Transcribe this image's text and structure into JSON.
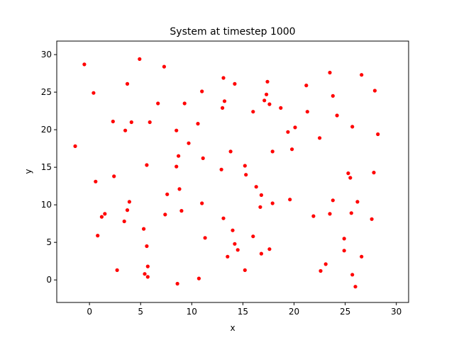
{
  "chart_data": {
    "type": "scatter",
    "title": "System at timestep 1000",
    "xlabel": "x",
    "ylabel": "y",
    "xlim": [
      -3.2,
      31.2
    ],
    "ylim": [
      -3.0,
      31.8
    ],
    "xticks": [
      0,
      5,
      10,
      15,
      20,
      25,
      30
    ],
    "yticks": [
      0,
      5,
      10,
      15,
      20,
      25,
      30
    ],
    "grid": false,
    "marker_color": "#ff0000",
    "points": [
      [
        -1.4,
        17.8
      ],
      [
        -0.5,
        28.7
      ],
      [
        0.4,
        24.9
      ],
      [
        0.6,
        13.1
      ],
      [
        0.8,
        5.9
      ],
      [
        1.2,
        8.4
      ],
      [
        1.5,
        8.8
      ],
      [
        2.3,
        21.1
      ],
      [
        2.4,
        13.8
      ],
      [
        2.7,
        1.3
      ],
      [
        3.4,
        7.8
      ],
      [
        3.5,
        19.9
      ],
      [
        3.7,
        26.1
      ],
      [
        3.7,
        9.3
      ],
      [
        3.9,
        10.4
      ],
      [
        4.1,
        21.0
      ],
      [
        4.9,
        29.4
      ],
      [
        5.3,
        6.8
      ],
      [
        5.4,
        0.8
      ],
      [
        5.6,
        15.3
      ],
      [
        5.6,
        4.5
      ],
      [
        5.7,
        1.8
      ],
      [
        5.7,
        0.4
      ],
      [
        5.9,
        21.0
      ],
      [
        6.7,
        23.5
      ],
      [
        7.3,
        28.4
      ],
      [
        7.4,
        8.7
      ],
      [
        7.6,
        11.4
      ],
      [
        8.5,
        19.9
      ],
      [
        8.5,
        15.1
      ],
      [
        8.6,
        -0.5
      ],
      [
        8.7,
        16.5
      ],
      [
        8.8,
        12.1
      ],
      [
        9.0,
        9.2
      ],
      [
        9.3,
        23.5
      ],
      [
        9.7,
        18.2
      ],
      [
        10.6,
        20.8
      ],
      [
        10.7,
        0.2
      ],
      [
        11.0,
        25.1
      ],
      [
        11.0,
        10.2
      ],
      [
        11.1,
        16.2
      ],
      [
        11.3,
        5.6
      ],
      [
        12.9,
        14.7
      ],
      [
        13.0,
        22.9
      ],
      [
        13.1,
        26.9
      ],
      [
        13.1,
        8.2
      ],
      [
        13.2,
        23.8
      ],
      [
        13.5,
        3.1
      ],
      [
        13.8,
        17.1
      ],
      [
        14.0,
        6.6
      ],
      [
        14.2,
        26.1
      ],
      [
        14.2,
        4.8
      ],
      [
        14.5,
        4.0
      ],
      [
        15.2,
        15.2
      ],
      [
        15.2,
        1.3
      ],
      [
        15.3,
        14.0
      ],
      [
        16.0,
        22.4
      ],
      [
        16.0,
        5.8
      ],
      [
        16.3,
        12.4
      ],
      [
        16.7,
        9.7
      ],
      [
        16.8,
        11.3
      ],
      [
        16.8,
        3.5
      ],
      [
        17.1,
        23.9
      ],
      [
        17.3,
        24.7
      ],
      [
        17.4,
        26.4
      ],
      [
        17.6,
        23.4
      ],
      [
        17.6,
        4.1
      ],
      [
        17.9,
        17.1
      ],
      [
        17.9,
        10.2
      ],
      [
        18.7,
        22.9
      ],
      [
        19.4,
        19.7
      ],
      [
        19.6,
        10.7
      ],
      [
        19.8,
        17.4
      ],
      [
        20.1,
        20.3
      ],
      [
        21.2,
        25.9
      ],
      [
        21.3,
        22.4
      ],
      [
        21.9,
        8.5
      ],
      [
        22.5,
        18.9
      ],
      [
        22.6,
        1.2
      ],
      [
        23.1,
        2.1
      ],
      [
        23.5,
        27.6
      ],
      [
        23.5,
        8.8
      ],
      [
        23.8,
        24.5
      ],
      [
        23.8,
        10.6
      ],
      [
        24.2,
        21.9
      ],
      [
        24.9,
        5.5
      ],
      [
        24.9,
        3.9
      ],
      [
        25.3,
        14.2
      ],
      [
        25.5,
        13.6
      ],
      [
        25.6,
        8.9
      ],
      [
        25.7,
        20.4
      ],
      [
        25.7,
        0.7
      ],
      [
        26.0,
        -0.9
      ],
      [
        26.2,
        10.4
      ],
      [
        26.6,
        27.3
      ],
      [
        26.6,
        3.1
      ],
      [
        27.6,
        8.1
      ],
      [
        27.8,
        14.3
      ],
      [
        27.9,
        25.2
      ],
      [
        28.2,
        19.4
      ]
    ]
  }
}
